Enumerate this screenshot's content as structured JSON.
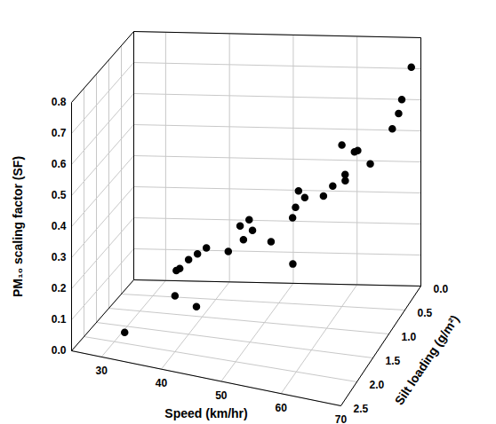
{
  "chart_data": {
    "type": "scatter3d",
    "x_label": "Speed (km/hr)",
    "y_label": "Silt loading (g/m²)",
    "z_label": "PM₁₀ scaling factor (SF)",
    "xlim": [
      25,
      70
    ],
    "xticks": [
      30,
      40,
      50,
      60,
      70
    ],
    "ylim": [
      0,
      2.5
    ],
    "yticks": [
      {
        "value": 0,
        "label": "0.0"
      },
      0.5,
      {
        "value": 1,
        "label": "1.0"
      },
      1.5,
      {
        "value": 2,
        "label": "2.0"
      },
      2.5
    ],
    "zlim": [
      0,
      0.8
    ],
    "zticks": [
      {
        "value": 0,
        "label": "0.0"
      },
      0.1,
      0.2,
      0.3,
      0.4,
      0.5,
      0.6,
      0.7,
      0.8
    ],
    "grid": true,
    "color": "#000000",
    "marker": "circle",
    "x": [
      33,
      40,
      44,
      40,
      39,
      41,
      38,
      42,
      46,
      48,
      49,
      47,
      48,
      52,
      55,
      55,
      56,
      56,
      55,
      59,
      60,
      61,
      62,
      62,
      63,
      60,
      65,
      67,
      68,
      68,
      69
    ],
    "y": [
      2.3,
      2.0,
      2.1,
      1.5,
      1.6,
      1.4,
      1.5,
      1.3,
      1.4,
      1.3,
      1.2,
      1.2,
      1.1,
      1.2,
      1.1,
      1.0,
      0.9,
      1.3,
      0.9,
      0.9,
      0.8,
      0.6,
      0.8,
      0.5,
      0.6,
      0.5,
      0.6,
      0.3,
      0.2,
      0.3,
      0.1
    ],
    "z": [
      0.07,
      0.18,
      0.17,
      0.24,
      0.22,
      0.25,
      0.2,
      0.26,
      0.27,
      0.3,
      0.32,
      0.33,
      0.34,
      0.29,
      0.36,
      0.38,
      0.4,
      0.24,
      0.42,
      0.41,
      0.43,
      0.44,
      0.45,
      0.5,
      0.52,
      0.52,
      0.48,
      0.55,
      0.63,
      0.6,
      0.72
    ]
  }
}
